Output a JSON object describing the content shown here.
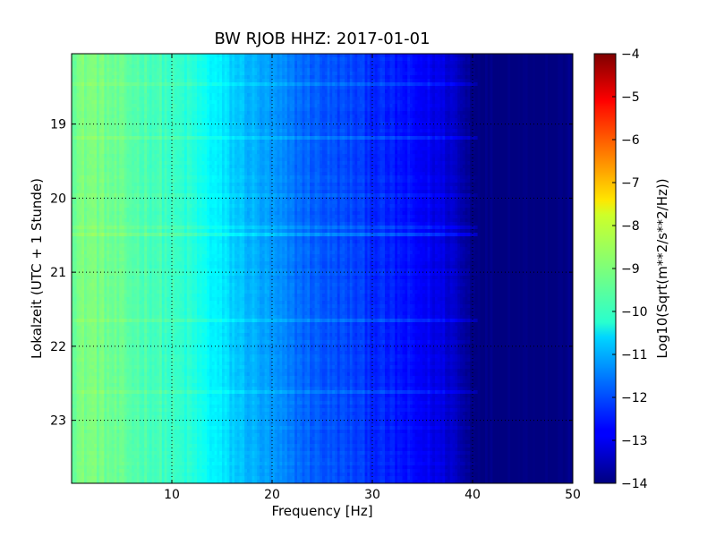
{
  "chart_data": {
    "type": "heatmap",
    "title": "BW RJOB HHZ: 2017-01-01",
    "xlabel": "Frequency [Hz]",
    "ylabel": "Lokalzeit (UTC + 1 Stunde)",
    "colorbar_label": "Log10(Sqrt(m**2/s**2/Hz))",
    "colormap": "jet",
    "grid": true,
    "xlim": [
      0,
      50
    ],
    "ylim": [
      18.05,
      23.85
    ],
    "y_inverted": true,
    "x_ticks": [
      10,
      20,
      30,
      40,
      50
    ],
    "x_tick_labels": [
      "10",
      "20",
      "30",
      "40",
      "50"
    ],
    "y_ticks": [
      19,
      20,
      21,
      22,
      23
    ],
    "y_tick_labels": [
      "19",
      "20",
      "21",
      "22",
      "23"
    ],
    "clim": [
      -14,
      -4
    ],
    "colorbar_ticks": [
      -4,
      -5,
      -6,
      -7,
      -8,
      -9,
      -10,
      -11,
      -12,
      -13,
      -14
    ],
    "colorbar_tick_labels": [
      "−4",
      "−5",
      "−6",
      "−7",
      "−8",
      "−9",
      "−10",
      "−11",
      "−12",
      "−13",
      "−14"
    ],
    "spectrum_profile": {
      "frequency": [
        0,
        2,
        5,
        8,
        10,
        12,
        14,
        16,
        18,
        20,
        22,
        25,
        28,
        30,
        33,
        36,
        38,
        39,
        40,
        41,
        45,
        50
      ],
      "value": [
        -9.1,
        -9.0,
        -9.3,
        -9.5,
        -9.7,
        -9.9,
        -10.3,
        -10.7,
        -11.0,
        -11.3,
        -11.6,
        -11.9,
        -12.1,
        -12.3,
        -12.6,
        -12.9,
        -13.2,
        -13.6,
        -13.85,
        -14.0,
        -14.0,
        -14.0
      ]
    }
  }
}
